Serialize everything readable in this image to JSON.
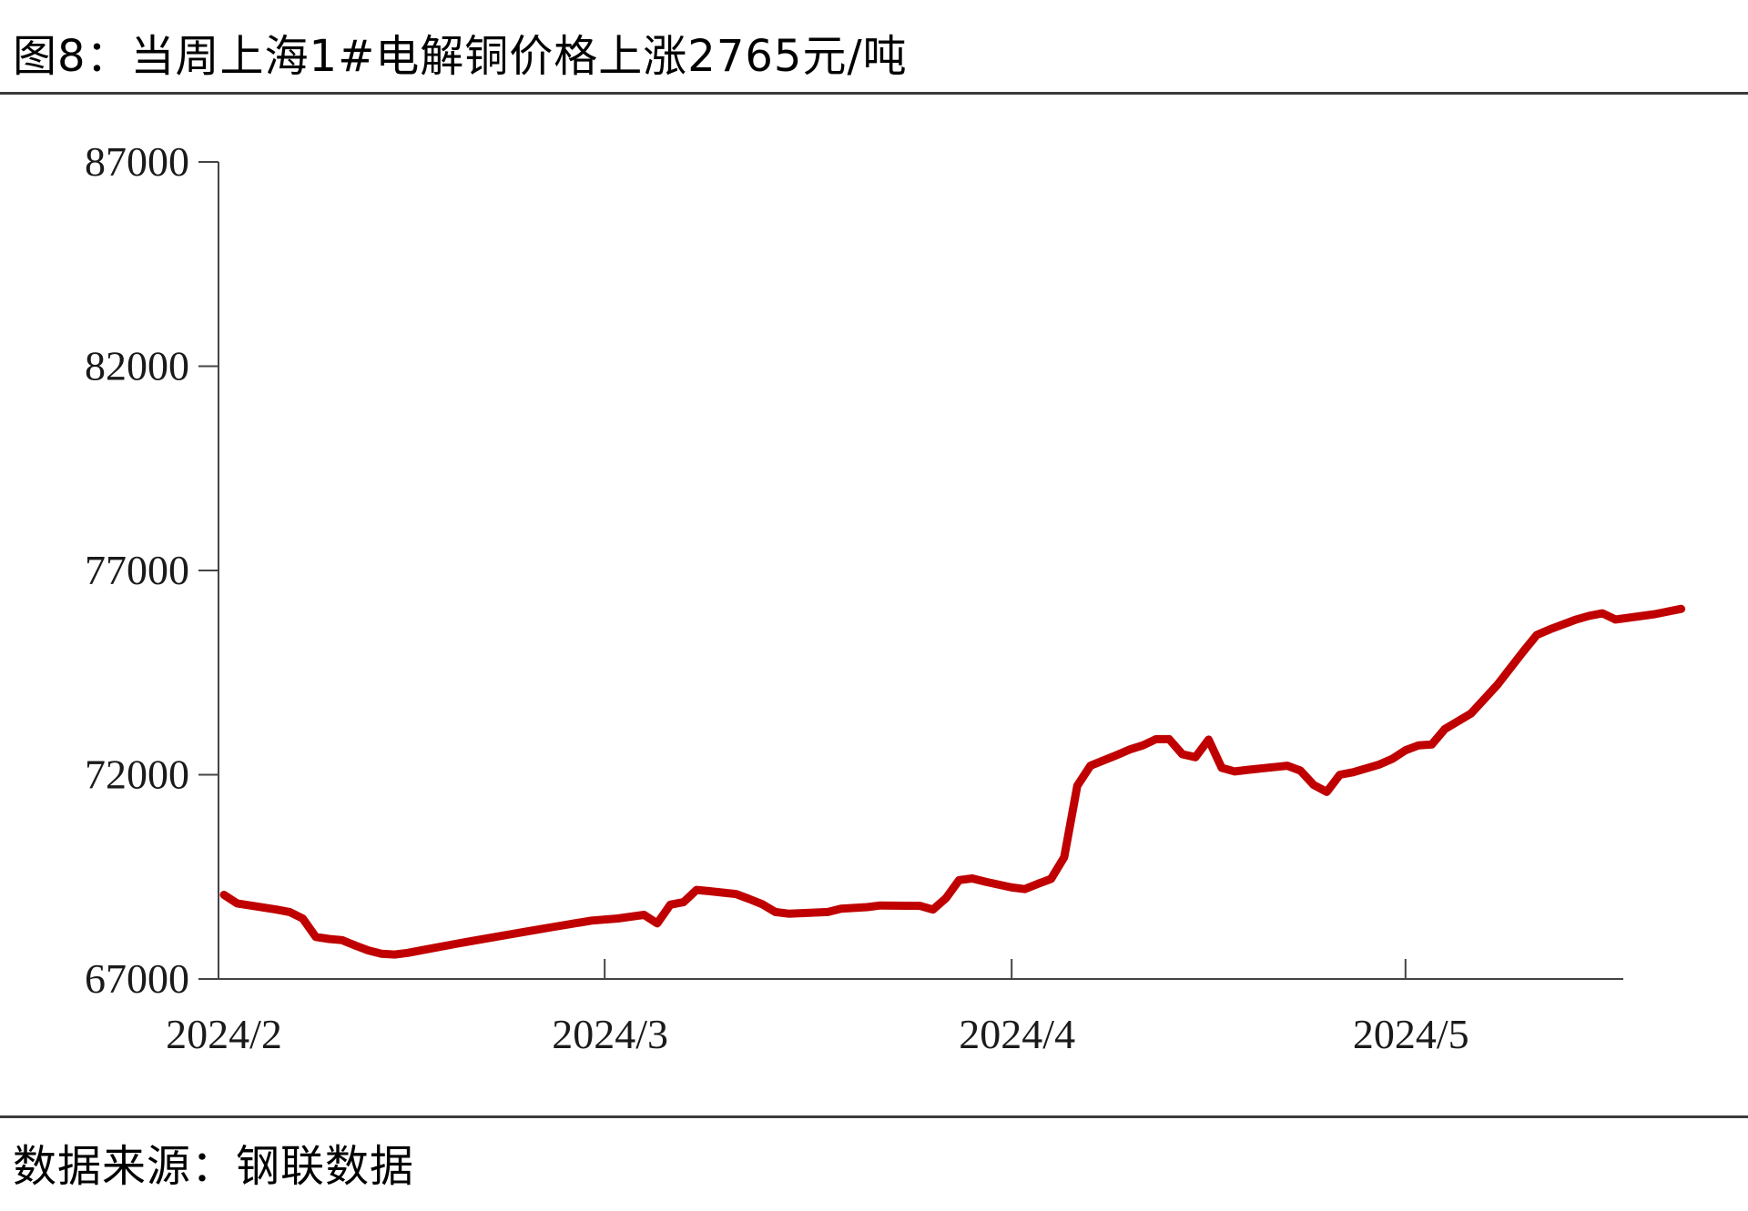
{
  "title": "图8：当周上海1#电解铜价格上涨2765元/吨",
  "source": "数据来源：钢联数据",
  "chart_data": {
    "type": "line",
    "title": "图8：当周上海1#电解铜价格上涨2765元/吨",
    "xlabel": "",
    "ylabel": "",
    "ylim": [
      67000,
      87000
    ],
    "yticks": [
      67000,
      72000,
      77000,
      82000,
      87000
    ],
    "xticks": [
      {
        "label": "2024/2",
        "date": "2024-02-01"
      },
      {
        "label": "2024/3",
        "date": "2024-03-01"
      },
      {
        "label": "2024/4",
        "date": "2024-04-01"
      },
      {
        "label": "2024/5",
        "date": "2024-05-01"
      }
    ],
    "xlim": [
      "2024-02-01",
      "2024-05-24"
    ],
    "grid": false,
    "legend": "none",
    "line_color": "#C00000",
    "series": [
      {
        "points": [
          [
            "2024-02-01",
            69060
          ],
          [
            "2024-02-02",
            68850
          ],
          [
            "2024-02-05",
            68700
          ],
          [
            "2024-02-06",
            68640
          ],
          [
            "2024-02-07",
            68480
          ],
          [
            "2024-02-08",
            68030
          ],
          [
            "2024-02-09",
            67980
          ],
          [
            "2024-02-10",
            67950
          ],
          [
            "2024-02-11",
            67820
          ],
          [
            "2024-02-12",
            67700
          ],
          [
            "2024-02-13",
            67620
          ],
          [
            "2024-02-14",
            67600
          ],
          [
            "2024-02-15",
            67640
          ],
          [
            "2024-02-16",
            67700
          ],
          [
            "2024-02-19",
            67880
          ],
          [
            "2024-02-22",
            68050
          ],
          [
            "2024-02-26",
            68270
          ],
          [
            "2024-02-29",
            68430
          ],
          [
            "2024-03-02",
            68480
          ],
          [
            "2024-03-04",
            68570
          ],
          [
            "2024-03-05",
            68360
          ],
          [
            "2024-03-06",
            68820
          ],
          [
            "2024-03-07",
            68880
          ],
          [
            "2024-03-08",
            69180
          ],
          [
            "2024-03-09",
            69150
          ],
          [
            "2024-03-11",
            69080
          ],
          [
            "2024-03-12",
            68960
          ],
          [
            "2024-03-13",
            68830
          ],
          [
            "2024-03-14",
            68640
          ],
          [
            "2024-03-15",
            68600
          ],
          [
            "2024-03-18",
            68640
          ],
          [
            "2024-03-19",
            68720
          ],
          [
            "2024-03-21",
            68760
          ],
          [
            "2024-03-22",
            68800
          ],
          [
            "2024-03-25",
            68790
          ],
          [
            "2024-03-26",
            68700
          ],
          [
            "2024-03-27",
            68980
          ],
          [
            "2024-03-28",
            69420
          ],
          [
            "2024-03-29",
            69460
          ],
          [
            "2024-03-30",
            69380
          ],
          [
            "2024-04-01",
            69240
          ],
          [
            "2024-04-02",
            69200
          ],
          [
            "2024-04-03",
            69330
          ],
          [
            "2024-04-04",
            69450
          ],
          [
            "2024-04-05",
            69980
          ],
          [
            "2024-04-06",
            71730
          ],
          [
            "2024-04-07",
            72220
          ],
          [
            "2024-04-09",
            72480
          ],
          [
            "2024-04-10",
            72620
          ],
          [
            "2024-04-11",
            72720
          ],
          [
            "2024-04-12",
            72870
          ],
          [
            "2024-04-13",
            72870
          ],
          [
            "2024-04-14",
            72500
          ],
          [
            "2024-04-15",
            72430
          ],
          [
            "2024-04-16",
            72860
          ],
          [
            "2024-04-17",
            72170
          ],
          [
            "2024-04-18",
            72080
          ],
          [
            "2024-04-19",
            72120
          ],
          [
            "2024-04-22",
            72220
          ],
          [
            "2024-04-23",
            72100
          ],
          [
            "2024-04-24",
            71750
          ],
          [
            "2024-04-25",
            71580
          ],
          [
            "2024-04-26",
            72000
          ],
          [
            "2024-04-27",
            72060
          ],
          [
            "2024-04-29",
            72250
          ],
          [
            "2024-04-30",
            72390
          ],
          [
            "2024-05-01",
            72600
          ],
          [
            "2024-05-02",
            72720
          ],
          [
            "2024-05-03",
            72740
          ],
          [
            "2024-05-04",
            73120
          ],
          [
            "2024-05-06",
            73500
          ],
          [
            "2024-05-08",
            74200
          ],
          [
            "2024-05-10",
            75030
          ],
          [
            "2024-05-11",
            75420
          ],
          [
            "2024-05-12",
            75560
          ],
          [
            "2024-05-14",
            75800
          ],
          [
            "2024-05-15",
            75890
          ],
          [
            "2024-05-16",
            75950
          ],
          [
            "2024-05-17",
            75800
          ],
          [
            "2024-05-20",
            75930
          ],
          [
            "2024-05-22",
            76060
          ]
        ]
      }
    ]
  }
}
